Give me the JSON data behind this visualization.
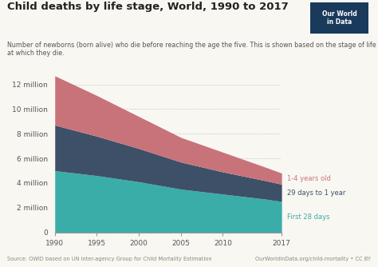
{
  "title": "Child deaths by life stage, World, 1990 to 2017",
  "subtitle": "Number of newborns (born alive) who die before reaching the age the five. This is shown based on the stage of life\nat which they die.",
  "source_left": "Source: OWID based on UN Inter-agency Group for Child Mortality Estimation",
  "source_right": "OurWorldInData.org/child-mortality • CC BY",
  "years": [
    1990,
    1995,
    2000,
    2005,
    2010,
    2015,
    2017
  ],
  "first_28_days": [
    5000000,
    4600000,
    4100000,
    3500000,
    3100000,
    2700000,
    2500000
  ],
  "days_29_to_1yr": [
    3700000,
    3200000,
    2700000,
    2200000,
    1800000,
    1500000,
    1400000
  ],
  "yr_1_to_4": [
    4000000,
    3300000,
    2600000,
    2000000,
    1600000,
    1100000,
    900000
  ],
  "color_first28": "#3aada8",
  "color_29to1yr": "#3d5068",
  "color_1to4": "#c8737a",
  "label_first28": "First 28 days",
  "label_29to1yr": "29 days to 1 year",
  "label_1to4": "1-4 years old",
  "ylim": [
    0,
    13000000
  ],
  "yticks": [
    0,
    2000000,
    4000000,
    6000000,
    8000000,
    10000000,
    12000000
  ],
  "ytick_labels": [
    "0",
    "2 million",
    "4 million",
    "6 million",
    "8 million",
    "10 million",
    "12 million"
  ],
  "xticks": [
    1990,
    1995,
    2000,
    2005,
    2010,
    2017
  ],
  "background_color": "#f9f7f2",
  "logo_bg": "#1a3a5c",
  "logo_text_color": "#ffffff"
}
